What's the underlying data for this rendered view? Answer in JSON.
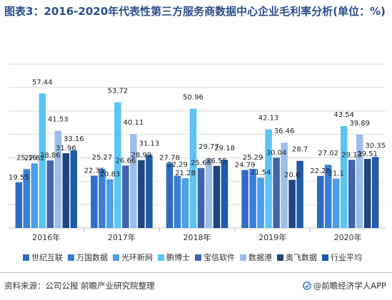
{
  "title": "图表3：2016-2020年代表性第三方服务商数据中心企业毛利率分析(单位：%)",
  "source": "资料来源：公司公报 前瞻产业研究院整理",
  "brand": "@前瞻经济学人APP",
  "chart_data": {
    "type": "bar",
    "categories": [
      "2016年",
      "2017年",
      "2018年",
      "2019年",
      "2020年"
    ],
    "ylim": [
      0,
      70
    ],
    "grid": true,
    "legend_position": "bottom",
    "series": [
      {
        "name": "世纪互联",
        "color": "#2e6cc4",
        "values": [
          19.55,
          22.35,
          27.78,
          24.79,
          22.28
        ]
      },
      {
        "name": "万国数据",
        "color": "#3a7fd6",
        "values": [
          25.16,
          25.27,
          22.29,
          25.29,
          27.02
        ]
      },
      {
        "name": "光环新网",
        "color": "#4b9ee8",
        "values": [
          27.62,
          20.83,
          21.28,
          21.54,
          21.1
        ]
      },
      {
        "name": "鹏博士",
        "color": "#5bc4f5",
        "values": [
          57.44,
          53.72,
          50.96,
          42.13,
          43.54
        ]
      },
      {
        "name": "宝信软件",
        "color": "#3f63ad",
        "values": [
          28.86,
          26.66,
          25.65,
          30.04,
          29.13
        ]
      },
      {
        "name": "数据港",
        "color": "#9dbdea",
        "values": [
          41.53,
          40.11,
          29.77,
          36.46,
          39.89
        ]
      },
      {
        "name": "奥飞数据",
        "color": "#20447e",
        "values": [
          31.96,
          28.99,
          26.55,
          20.6,
          29.51
        ]
      },
      {
        "name": "行业平均",
        "color": "#1e5ba8",
        "values": [
          33.16,
          31.13,
          29.18,
          28.7,
          30.35
        ]
      }
    ]
  }
}
